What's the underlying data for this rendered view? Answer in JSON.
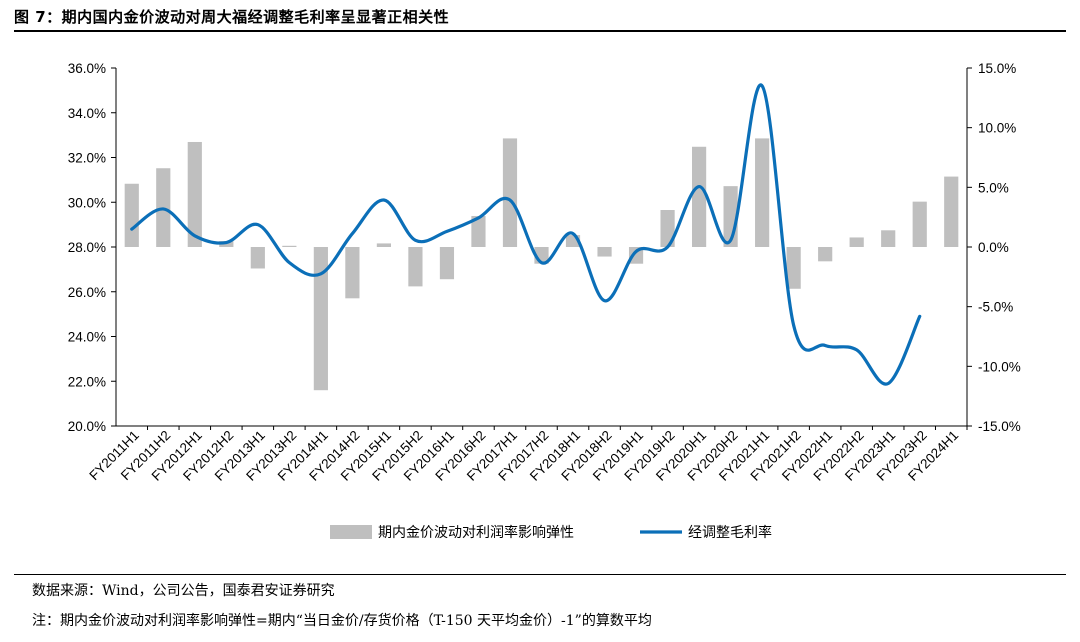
{
  "header": {
    "title": "图 7：期内国内金价波动对周大福经调整毛利率呈显著正相关性"
  },
  "footer": {
    "source": "数据来源：Wind，公司公告，国泰君安证券研究",
    "note": "注：期内金价波动对利润率影响弹性=期内“当日金价/存货价格（T-150 天平均金价）-1”的算数平均"
  },
  "chart_data": {
    "type": "bar+line",
    "categories": [
      "FY2011H1",
      "FY2011H2",
      "FY2012H1",
      "FY2012H2",
      "FY2013H1",
      "FY2013H2",
      "FY2014H1",
      "FY2014H2",
      "FY2015H1",
      "FY2015H2",
      "FY2016H1",
      "FY2016H2",
      "FY2017H1",
      "FY2017H2",
      "FY2018H1",
      "FY2018H2",
      "FY2019H1",
      "FY2019H2",
      "FY2020H1",
      "FY2020H2",
      "FY2021H1",
      "FY2021H2",
      "FY2022H1",
      "FY2022H2",
      "FY2023H1",
      "FY2023H2",
      "FY2024H1"
    ],
    "left_axis": {
      "min": 20,
      "max": 36,
      "step": 2,
      "format": "percent1"
    },
    "right_axis": {
      "min": -15,
      "max": 15,
      "step": 5,
      "format": "percent1"
    },
    "series": [
      {
        "name": "期内金价波动对利润率影响弹性",
        "type": "bar",
        "axis": "right",
        "color": "#bfbfbf",
        "values": [
          5.3,
          6.6,
          8.8,
          0.5,
          -1.8,
          0.1,
          -12.0,
          -4.3,
          0.3,
          -3.3,
          -2.7,
          2.6,
          9.1,
          -1.4,
          1.0,
          -0.8,
          -1.4,
          3.1,
          8.4,
          5.1,
          9.1,
          -3.5,
          -1.2,
          0.8,
          1.4,
          3.8,
          5.9
        ]
      },
      {
        "name": "经调整毛利率",
        "type": "line",
        "axis": "left",
        "color": "#0b6fb8",
        "values": [
          28.8,
          29.7,
          28.5,
          28.2,
          29.0,
          27.3,
          26.8,
          28.6,
          30.1,
          28.3,
          28.7,
          29.3,
          30.1,
          27.3,
          28.6,
          25.6,
          27.8,
          28.0,
          30.7,
          28.3,
          35.2,
          24.5,
          23.6,
          23.4,
          21.9,
          24.9,
          null
        ]
      }
    ],
    "legend": "bottom-center"
  }
}
